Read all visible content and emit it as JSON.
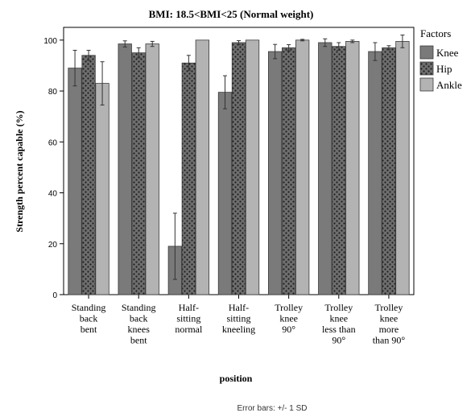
{
  "chart_data": {
    "type": "bar",
    "title": "BMI: 18.5<BMI<25 (Normal weight)",
    "xlabel": "position",
    "ylabel": "Strength percent capable (%)",
    "ylim": [
      0,
      105
    ],
    "yticks": [
      0,
      20,
      40,
      60,
      80,
      100
    ],
    "grid": false,
    "legend_title": "Factors",
    "legend_position": "right",
    "footnote": "Error bars: +/- 1 SD",
    "categories": [
      [
        "Standing",
        "back",
        "bent"
      ],
      [
        "Standing",
        "back",
        "knees",
        "bent"
      ],
      [
        "Half-",
        "sitting",
        "normal"
      ],
      [
        "Half-",
        "sitting",
        "kneeling"
      ],
      [
        "Trolley",
        "knee",
        "90°"
      ],
      [
        "Trolley",
        "knee",
        "less than",
        "90°"
      ],
      [
        "Trolley",
        "knee",
        "more",
        "than 90°"
      ]
    ],
    "series": [
      {
        "name": "Knee",
        "color": "#7a7a7a",
        "pattern": "solid",
        "values": [
          89,
          98.5,
          19,
          79.5,
          95.5,
          99,
          95.5
        ],
        "error": [
          7,
          1.2,
          13,
          6.5,
          2.8,
          1.5,
          3.5
        ]
      },
      {
        "name": "Hip",
        "color": "#575757",
        "pattern": "dots",
        "values": [
          94,
          95,
          91,
          99,
          97,
          97.5,
          97
        ],
        "error": [
          2,
          2,
          3,
          0.8,
          1.2,
          1.5,
          0.8
        ]
      },
      {
        "name": "Ankle",
        "color": "#b3b3b3",
        "pattern": "solid",
        "values": [
          83,
          98.5,
          100,
          100,
          100,
          99.5,
          99.5
        ],
        "error": [
          8.5,
          1,
          0,
          0,
          0.3,
          0.5,
          2.5
        ]
      }
    ]
  }
}
